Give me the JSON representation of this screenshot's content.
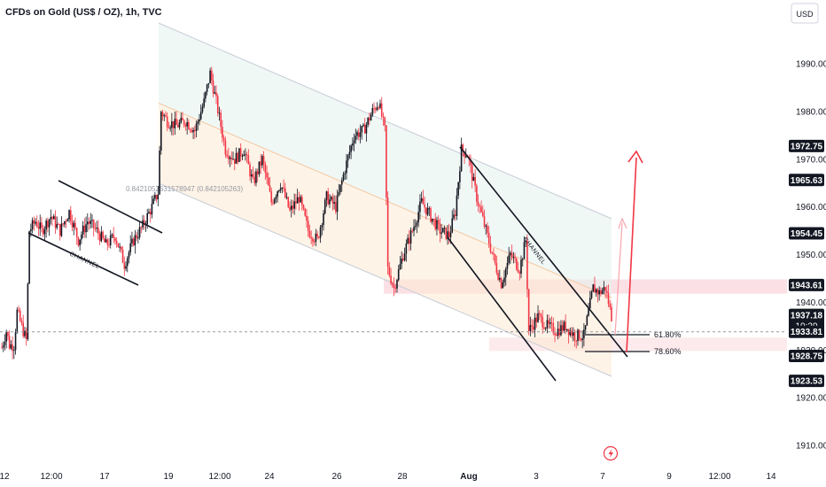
{
  "header": {
    "title": "CFDs on Gold (US$ / OZ), 1h, TVC"
  },
  "currency_button": {
    "label": "USD"
  },
  "chart_data": {
    "type": "candlestick",
    "title": "CFDs on Gold (US$ / OZ), 1h, TVC",
    "ylim": [
      1906,
      1998
    ],
    "y_ticks": [
      {
        "value": 1990,
        "label": "1990.00"
      },
      {
        "value": 1980,
        "label": "1980.00"
      },
      {
        "value": 1970,
        "label": "1970.00"
      },
      {
        "value": 1960,
        "label": "1960.00"
      },
      {
        "value": 1950,
        "label": "1950.00"
      },
      {
        "value": 1940,
        "label": "1940.00"
      },
      {
        "value": 1930,
        "label": "1930.00"
      },
      {
        "value": 1920,
        "label": "1920.00"
      },
      {
        "value": 1910,
        "label": "1910.00"
      }
    ],
    "x_ticks": [
      "12",
      "12:00",
      "17",
      "19",
      "12:00",
      "24",
      "26",
      "28",
      "Aug",
      "3",
      "7",
      "9",
      "12:00",
      "14"
    ],
    "price_labels": [
      {
        "value": 1972.75,
        "label": "1972.75",
        "style": "dark"
      },
      {
        "value": 1965.63,
        "label": "1965.63",
        "style": "dark"
      },
      {
        "value": 1954.45,
        "label": "1954.45",
        "style": "dark"
      },
      {
        "value": 1943.61,
        "label": "1943.61",
        "style": "dark"
      },
      {
        "value": 1937.18,
        "label": "1937.18",
        "style": "dark",
        "sub": "10:29"
      },
      {
        "value": 1933.81,
        "label": "1933.81",
        "style": "dark"
      },
      {
        "value": 1928.75,
        "label": "1928.75",
        "style": "dark"
      },
      {
        "value": 1923.53,
        "label": "1923.53",
        "style": "dark"
      }
    ],
    "fib_levels": [
      {
        "label": "61.80%",
        "value": 1933.3
      },
      {
        "label": "78.60%",
        "value": 1929.0
      }
    ],
    "annotations": [
      {
        "text": "CHANNEL"
      },
      {
        "text": "CHANNEL"
      },
      {
        "text": "0.8421052631578947 (0.842105263)"
      }
    ],
    "resistance_zone": [
      1941.8,
      1944.8
    ],
    "support_zone": [
      1929.8,
      1932.6
    ],
    "current_price": 1933.81,
    "keypoints": [
      {
        "t": 0,
        "p": 1930.5
      },
      {
        "t": 3,
        "p": 1934
      },
      {
        "t": 5,
        "p": 1931
      },
      {
        "t": 8,
        "p": 1931
      },
      {
        "t": 10,
        "p": 1938
      },
      {
        "t": 13,
        "p": 1935
      },
      {
        "t": 16,
        "p": 1932
      },
      {
        "t": 18,
        "p": 1955
      },
      {
        "t": 22,
        "p": 1957
      },
      {
        "t": 26,
        "p": 1955
      },
      {
        "t": 32,
        "p": 1958
      },
      {
        "t": 38,
        "p": 1955
      },
      {
        "t": 44,
        "p": 1959
      },
      {
        "t": 50,
        "p": 1953
      },
      {
        "t": 56,
        "p": 1957
      },
      {
        "t": 62,
        "p": 1955
      },
      {
        "t": 68,
        "p": 1952
      },
      {
        "t": 74,
        "p": 1954
      },
      {
        "t": 80,
        "p": 1948
      },
      {
        "t": 86,
        "p": 1953
      },
      {
        "t": 92,
        "p": 1956
      },
      {
        "t": 98,
        "p": 1960
      },
      {
        "t": 102,
        "p": 1963
      },
      {
        "t": 104,
        "p": 1980
      },
      {
        "t": 108,
        "p": 1978
      },
      {
        "t": 114,
        "p": 1977
      },
      {
        "t": 120,
        "p": 1978
      },
      {
        "t": 126,
        "p": 1976
      },
      {
        "t": 132,
        "p": 1982
      },
      {
        "t": 136,
        "p": 1988
      },
      {
        "t": 140,
        "p": 1982
      },
      {
        "t": 146,
        "p": 1972
      },
      {
        "t": 152,
        "p": 1970
      },
      {
        "t": 158,
        "p": 1972
      },
      {
        "t": 164,
        "p": 1965
      },
      {
        "t": 170,
        "p": 1970
      },
      {
        "t": 176,
        "p": 1961
      },
      {
        "t": 182,
        "p": 1965
      },
      {
        "t": 188,
        "p": 1959
      },
      {
        "t": 194,
        "p": 1962
      },
      {
        "t": 200,
        "p": 1955
      },
      {
        "t": 206,
        "p": 1953
      },
      {
        "t": 212,
        "p": 1962
      },
      {
        "t": 218,
        "p": 1960
      },
      {
        "t": 224,
        "p": 1968
      },
      {
        "t": 230,
        "p": 1975
      },
      {
        "t": 236,
        "p": 1976
      },
      {
        "t": 242,
        "p": 1980
      },
      {
        "t": 246,
        "p": 1982
      },
      {
        "t": 250,
        "p": 1976
      },
      {
        "t": 252,
        "p": 1947
      },
      {
        "t": 256,
        "p": 1943
      },
      {
        "t": 262,
        "p": 1950
      },
      {
        "t": 268,
        "p": 1955
      },
      {
        "t": 274,
        "p": 1961
      },
      {
        "t": 280,
        "p": 1958
      },
      {
        "t": 286,
        "p": 1955
      },
      {
        "t": 292,
        "p": 1954
      },
      {
        "t": 296,
        "p": 1959
      },
      {
        "t": 300,
        "p": 1972
      },
      {
        "t": 304,
        "p": 1971
      },
      {
        "t": 310,
        "p": 1962
      },
      {
        "t": 316,
        "p": 1955
      },
      {
        "t": 322,
        "p": 1948
      },
      {
        "t": 326,
        "p": 1944
      },
      {
        "t": 332,
        "p": 1950
      },
      {
        "t": 338,
        "p": 1947
      },
      {
        "t": 342,
        "p": 1953
      },
      {
        "t": 344,
        "p": 1934
      },
      {
        "t": 350,
        "p": 1937
      },
      {
        "t": 356,
        "p": 1935
      },
      {
        "t": 362,
        "p": 1934
      },
      {
        "t": 368,
        "p": 1935
      },
      {
        "t": 374,
        "p": 1933
      },
      {
        "t": 380,
        "p": 1933
      },
      {
        "t": 386,
        "p": 1943
      },
      {
        "t": 390,
        "p": 1942
      },
      {
        "t": 394,
        "p": 1943
      },
      {
        "t": 398,
        "p": 1937
      }
    ]
  }
}
